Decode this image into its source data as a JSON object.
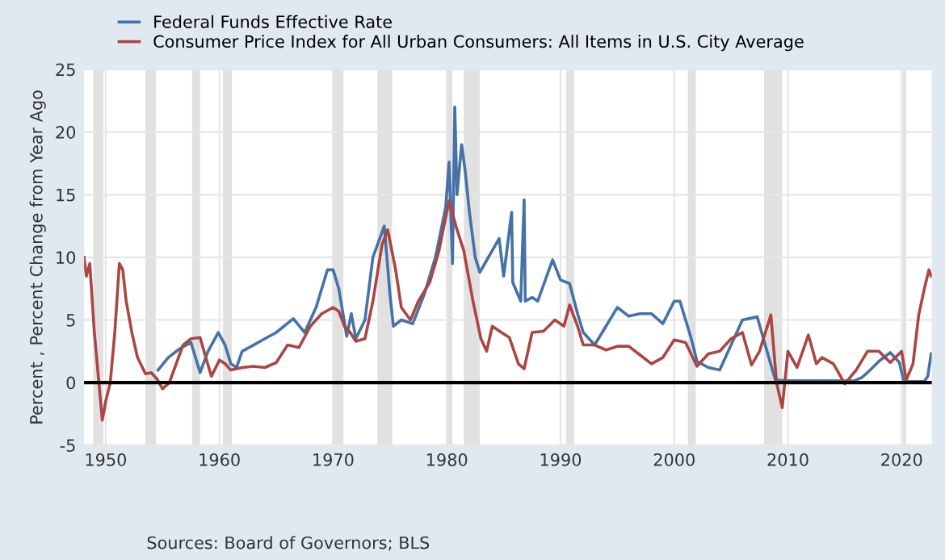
{
  "chart_data": {
    "type": "line",
    "ylabel": "Percent , Percent Change from Year Ago",
    "annotations": [
      "Sources: Board of Governors; BLS"
    ],
    "xlim": [
      1948.1,
      2022.65
    ],
    "xticks": [
      1950,
      1960,
      1970,
      1980,
      1990,
      2000,
      2010,
      2020
    ],
    "ylim": [
      -5,
      25
    ],
    "yticks": [
      -5,
      0,
      5,
      10,
      15,
      20,
      25
    ],
    "grid": true,
    "legend": "top left",
    "ref_lines": [
      {
        "axis": "y",
        "value": 0,
        "color": "#000000"
      }
    ],
    "bands": [
      {
        "axis": "x",
        "from": 1948.9,
        "to": 1949.8,
        "color": "#e1e1e1"
      },
      {
        "axis": "x",
        "from": 1953.5,
        "to": 1954.4,
        "color": "#e1e1e1"
      },
      {
        "axis": "x",
        "from": 1957.6,
        "to": 1958.3,
        "color": "#e1e1e1"
      },
      {
        "axis": "x",
        "from": 1960.3,
        "to": 1961.1,
        "color": "#e1e1e1"
      },
      {
        "axis": "x",
        "from": 1969.9,
        "to": 1970.9,
        "color": "#e1e1e1"
      },
      {
        "axis": "x",
        "from": 1973.9,
        "to": 1975.2,
        "color": "#e1e1e1"
      },
      {
        "axis": "x",
        "from": 1980.0,
        "to": 1980.5,
        "color": "#e1e1e1"
      },
      {
        "axis": "x",
        "from": 1981.5,
        "to": 1982.9,
        "color": "#e1e1e1"
      },
      {
        "axis": "x",
        "from": 1990.5,
        "to": 1991.2,
        "color": "#e1e1e1"
      },
      {
        "axis": "x",
        "from": 2001.2,
        "to": 2001.9,
        "color": "#e1e1e1"
      },
      {
        "axis": "x",
        "from": 2007.9,
        "to": 2009.5,
        "color": "#e1e1e1"
      },
      {
        "axis": "x",
        "from": 2020.1,
        "to": 2020.4,
        "color": "#e1e1e1"
      }
    ],
    "series": [
      {
        "name": "Federal Funds Effective Rate",
        "color": "#4572a7",
        "x": [
          1954.6,
          1955.5,
          1956.5,
          1957.5,
          1958.3,
          1959,
          1959.9,
          1960.5,
          1961,
          1961.5,
          1962,
          1963,
          1964,
          1965,
          1966.5,
          1967.5,
          1968.5,
          1969.5,
          1970,
          1970.5,
          1971.2,
          1971.6,
          1972,
          1972.8,
          1973.5,
          1974.5,
          1975,
          1975.3,
          1976,
          1977,
          1978,
          1979,
          1979.9,
          1980.2,
          1980.5,
          1980.7,
          1980.9,
          1981.3,
          1981.6,
          1982,
          1982.5,
          1982.9,
          1984.6,
          1985,
          1985.7,
          1985.8,
          1986.5,
          1986.8,
          1986.9,
          1987.5,
          1988,
          1989.3,
          1990,
          1990.8,
          1991.5,
          1992,
          1993,
          1994,
          1995,
          1996,
          1997,
          1998,
          1999,
          2000,
          2000.5,
          2001.5,
          2002,
          2003,
          2004,
          2005,
          2006,
          2007.3,
          2008,
          2008.9,
          2010,
          2012,
          2015.8,
          2016.5,
          2017,
          2018,
          2019,
          2019.8,
          2020.2,
          2021,
          2022,
          2022.3,
          2022.6
        ],
        "values": [
          1,
          2,
          2.7,
          3.2,
          0.8,
          2.5,
          4,
          3,
          1.5,
          1.2,
          2.5,
          3,
          3.5,
          4,
          5.1,
          4,
          6,
          9,
          9,
          7.5,
          3.7,
          5.5,
          3.5,
          5,
          10,
          12.5,
          7,
          4.5,
          5,
          4.7,
          7,
          10,
          14,
          17.6,
          9.5,
          22,
          15,
          19,
          17,
          13.5,
          10,
          8.8,
          11.5,
          8.5,
          13.6,
          8,
          6.5,
          14.6,
          6.5,
          6.8,
          6.5,
          9.8,
          8.2,
          7.9,
          5.5,
          4,
          3,
          4.5,
          6,
          5.3,
          5.5,
          5.5,
          4.7,
          6.5,
          6.5,
          3.5,
          1.7,
          1.2,
          1,
          3,
          5,
          5.25,
          3,
          0.2,
          0.15,
          0.15,
          0.13,
          0.4,
          0.8,
          1.7,
          2.4,
          1.6,
          0.1,
          0.08,
          0.1,
          0.5,
          2.3
        ]
      },
      {
        "name": "Consumer Price Index for All Urban Consumers: All Items in U.S. City Average",
        "color": "#aa4643",
        "x": [
          1948.1,
          1948.3,
          1948.6,
          1949,
          1949.3,
          1949.7,
          1950,
          1950.4,
          1950.8,
          1951.2,
          1951.5,
          1951.8,
          1952.3,
          1952.8,
          1953.5,
          1954,
          1954.5,
          1955,
          1955.6,
          1956.2,
          1956.8,
          1957.5,
          1958.3,
          1958.8,
          1959.3,
          1960,
          1960.5,
          1961,
          1962,
          1963,
          1964,
          1965,
          1966,
          1967,
          1968,
          1969,
          1970,
          1970.5,
          1971,
          1971.5,
          1972,
          1972.8,
          1973.5,
          1974.3,
          1974.8,
          1975.5,
          1976,
          1976.8,
          1977.5,
          1978.5,
          1979.3,
          1980.2,
          1980.8,
          1981.5,
          1982.3,
          1983,
          1983.5,
          1984,
          1984.8,
          1985.5,
          1986.3,
          1986.8,
          1987.5,
          1988.5,
          1989.5,
          1990.3,
          1990.8,
          1991.5,
          1992,
          1993,
          1994,
          1995,
          1996,
          1997,
          1998,
          1999,
          2000,
          2001,
          2002,
          2003,
          2004,
          2005,
          2006,
          2006.8,
          2007.5,
          2008.5,
          2009,
          2009.5,
          2010,
          2010.8,
          2011.8,
          2012.5,
          2013,
          2014,
          2015,
          2016,
          2017,
          2018,
          2019,
          2020,
          2020.4,
          2021,
          2021.5,
          2022,
          2022.4,
          2022.6
        ],
        "values": [
          10,
          8.5,
          9.5,
          4,
          1,
          -3,
          -1.5,
          0,
          4,
          9.5,
          9,
          6.5,
          4,
          2,
          0.7,
          0.8,
          0.3,
          -0.5,
          0,
          1.5,
          3,
          3.5,
          3.6,
          2,
          0.5,
          1.8,
          1.5,
          1,
          1.2,
          1.3,
          1.2,
          1.6,
          3,
          2.8,
          4.5,
          5.5,
          6,
          5.7,
          4.5,
          4,
          3.3,
          3.5,
          6.5,
          11,
          12.2,
          9,
          6,
          5,
          6.5,
          8,
          10.5,
          14.5,
          12.5,
          10.5,
          6.5,
          3.5,
          2.5,
          4.5,
          4,
          3.6,
          1.5,
          1.1,
          4,
          4.1,
          5,
          4.5,
          6.2,
          4.5,
          3,
          3,
          2.6,
          2.9,
          2.9,
          2.2,
          1.5,
          2,
          3.4,
          3.2,
          1.3,
          2.3,
          2.5,
          3.5,
          4,
          1.4,
          2.5,
          5.4,
          0,
          -2,
          2.5,
          1.2,
          3.8,
          1.5,
          2,
          1.5,
          -0.1,
          1,
          2.5,
          2.5,
          1.6,
          2.5,
          0.2,
          1.5,
          5.4,
          7.5,
          9,
          8.5
        ]
      }
    ]
  }
}
